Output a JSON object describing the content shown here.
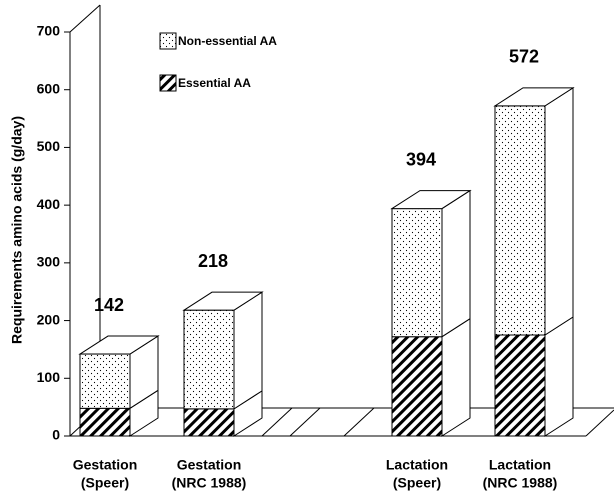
{
  "chart_data": {
    "type": "bar3d_stacked",
    "y_label": "Requirements amino acids (g/day)",
    "categories": [
      [
        "Gestation",
        "(Speer)"
      ],
      [
        "Gestation",
        "(NRC 1988)"
      ],
      [
        "Lactation",
        "(Speer)"
      ],
      [
        "Lactation",
        "(NRC 1988)"
      ]
    ],
    "series": [
      {
        "name": "Essential AA",
        "pattern": "hatch",
        "values": [
          48,
          47,
          172,
          175
        ]
      },
      {
        "name": "Non-essential AA",
        "pattern": "dots",
        "values": [
          94,
          171,
          222,
          397
        ]
      }
    ],
    "totals": [
      142,
      218,
      394,
      572
    ],
    "ylim": [
      0,
      700
    ],
    "yticks": [
      0,
      100,
      200,
      300,
      400,
      500,
      600,
      700
    ]
  }
}
